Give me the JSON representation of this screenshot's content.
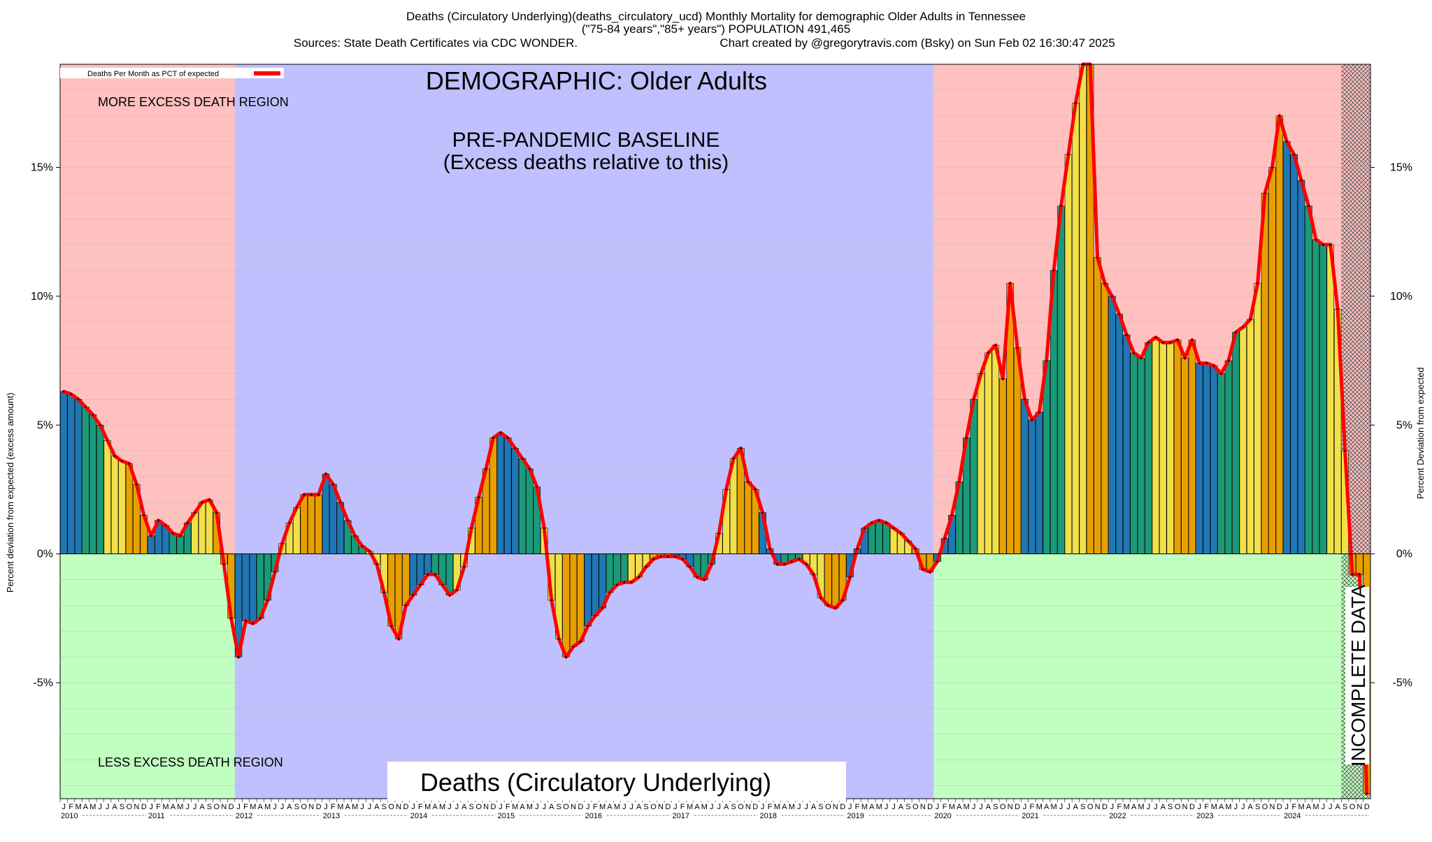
{
  "header": {
    "line1": "Deaths (Circulatory Underlying)(deaths_circulatory_ucd) Monthly Mortality for demographic Older Adults in Tennessee",
    "line2": "(\"75-84 years\",\"85+ years\") POPULATION 491,465",
    "sources": "Sources: State Death Certificates via CDC WONDER.",
    "credit": "Chart created by @gregorytravis.com (Bsky) on Sun Feb 02 16:30:47 2025"
  },
  "legend": {
    "label": "Deaths Per Month as PCT of expected",
    "color": "#ff0000"
  },
  "annotations": {
    "demographic": "DEMOGRAPHIC: Older Adults",
    "baseline_line1": "PRE-PANDEMIC BASELINE",
    "baseline_line2": "(Excess deaths relative to this)",
    "more_region": "MORE EXCESS DEATH REGION",
    "less_region": "LESS EXCESS DEATH REGION",
    "incomplete": "INCOMPLETE DATA",
    "footer_title": "Deaths (Circulatory Underlying)"
  },
  "axes": {
    "ylabel_left": "Percent deviation from expected (excess amount)",
    "ylabel_right": "Percent Deviation from expected",
    "yticks": [
      {
        "value": 15,
        "label": "15%"
      },
      {
        "value": 10,
        "label": "10%"
      },
      {
        "value": 5,
        "label": "5%"
      },
      {
        "value": 0,
        "label": "0%"
      },
      {
        "value": -5,
        "label": "-5%"
      }
    ],
    "month_letters": [
      "J",
      "F",
      "M",
      "A",
      "M",
      "J",
      "J",
      "A",
      "S",
      "O",
      "N",
      "D"
    ],
    "year_labels": [
      "2010",
      "2011",
      "2012",
      "2013",
      "2014",
      "2015",
      "2016",
      "2017",
      "2018",
      "2019",
      "2020",
      "2021",
      "2022",
      "2023",
      "2024"
    ]
  },
  "colors": {
    "excess_region": "#ffc0c0",
    "less_region": "#c0ffc0",
    "baseline_region": "#c0c0ff",
    "line": "#ff0000",
    "bar_palette": [
      "#1f77b4",
      "#1a9a78",
      "#f2e04a",
      "#e8a000"
    ]
  },
  "chart_data": {
    "type": "bar",
    "title": "Deaths (Circulatory Underlying)(deaths_circulatory_ucd) Monthly Mortality for demographic Older Adults in Tennessee",
    "ylabel": "Percent deviation from expected (excess amount)",
    "ylim": [
      -9.5,
      19
    ],
    "x_start": "2010-01",
    "x_end": "2024-12",
    "baseline_period": [
      "2012-01",
      "2019-12"
    ],
    "incomplete_period": [
      "2024-09",
      "2024-12"
    ],
    "series": [
      {
        "name": "Deaths Per Month as PCT of expected",
        "values": [
          6.3,
          6.2,
          6.0,
          5.7,
          5.4,
          5.0,
          4.4,
          3.8,
          3.6,
          3.5,
          2.7,
          1.5,
          0.7,
          1.3,
          1.1,
          0.8,
          0.7,
          1.2,
          1.6,
          2.0,
          2.1,
          1.6,
          -0.4,
          -2.5,
          -4.0,
          -2.6,
          -2.7,
          -2.5,
          -1.8,
          -0.7,
          0.4,
          1.2,
          1.8,
          2.3,
          2.3,
          2.3,
          3.1,
          2.7,
          2.0,
          1.3,
          0.7,
          0.3,
          0.1,
          -0.4,
          -1.5,
          -2.8,
          -3.3,
          -2.0,
          -1.6,
          -1.2,
          -0.8,
          -0.8,
          -1.2,
          -1.6,
          -1.4,
          -0.5,
          1.0,
          2.2,
          3.3,
          4.5,
          4.7,
          4.5,
          4.1,
          3.7,
          3.3,
          2.6,
          1.0,
          -1.8,
          -3.3,
          -4.0,
          -3.6,
          -3.4,
          -2.8,
          -2.4,
          -2.1,
          -1.5,
          -1.2,
          -1.1,
          -1.1,
          -0.9,
          -0.5,
          -0.2,
          -0.1,
          -0.1,
          -0.1,
          -0.2,
          -0.5,
          -0.9,
          -1.0,
          -0.4,
          0.8,
          2.5,
          3.7,
          4.1,
          2.8,
          2.5,
          1.6,
          0.2,
          -0.4,
          -0.4,
          -0.3,
          -0.2,
          -0.4,
          -0.8,
          -1.7,
          -2.0,
          -2.1,
          -1.8,
          -0.9,
          0.2,
          1.0,
          1.2,
          1.3,
          1.2,
          1.0,
          0.8,
          0.5,
          0.2,
          -0.6,
          -0.7,
          -0.3,
          0.6,
          1.5,
          2.8,
          4.5,
          6.0,
          7.0,
          7.8,
          8.1,
          6.8,
          10.5,
          8.0,
          6.0,
          5.2,
          5.5,
          7.5,
          11.0,
          13.5,
          15.5,
          17.5,
          19.0,
          19.0,
          11.5,
          10.5,
          10.0,
          9.3,
          8.5,
          7.8,
          7.6,
          8.2,
          8.4,
          8.2,
          8.2,
          8.3,
          7.6,
          8.3,
          7.4,
          7.4,
          7.3,
          7.0,
          7.5,
          8.6,
          8.8,
          9.1,
          10.5,
          14.0,
          15.0,
          17.0,
          16.0,
          15.5,
          14.5,
          13.5,
          12.2,
          12.0,
          12.0,
          9.5,
          4.0,
          -0.8,
          -0.8,
          -9.3
        ]
      }
    ]
  }
}
